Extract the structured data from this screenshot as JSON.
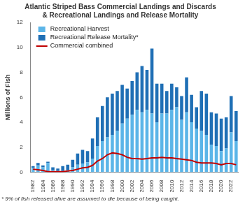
{
  "chart_data": {
    "type": "bar",
    "title": [
      "Atlantic Striped Bass Commercial Landings and Discards",
      "& Recreational Landings and Release Mortality"
    ],
    "y_label": "Millions of Fish",
    "footnote": "* 9% of fish released alive are assumed to die because of being caught.",
    "categories": [
      "1982",
      null,
      "1984",
      null,
      "1986",
      null,
      "1988",
      null,
      "1990",
      null,
      "1992",
      null,
      "1994",
      null,
      "1996",
      null,
      "1998",
      null,
      "2000",
      null,
      "2002",
      null,
      "2004",
      null,
      "2006",
      null,
      "2008",
      null,
      "2010",
      null,
      "2012",
      null,
      "2014",
      null,
      "2016",
      null,
      "2018",
      null,
      "2020",
      null,
      "2022",
      null
    ],
    "stacked": true,
    "series": [
      {
        "name": "Recreational Harvest",
        "type": "bar",
        "color": "#5bb5e8",
        "values": [
          0.35,
          0.55,
          0.4,
          0.75,
          0.2,
          0.1,
          0.1,
          0.2,
          0.4,
          0.6,
          0.7,
          0.8,
          1.1,
          2.1,
          2.5,
          2.8,
          3.0,
          3.3,
          3.9,
          4.3,
          4.6,
          5.0,
          4.8,
          5.0,
          4.7,
          4.0,
          4.7,
          4.7,
          5.0,
          5.2,
          4.2,
          4.8,
          4.0,
          3.5,
          3.3,
          3.0,
          2.2,
          2.1,
          1.7,
          1.9,
          3.2,
          2.5
        ]
      },
      {
        "name": "Recreational Release Mortality*",
        "type": "bar",
        "color": "#1f6fb5",
        "values": [
          0.15,
          0.2,
          0.15,
          0.1,
          0.2,
          0.2,
          0.4,
          0.4,
          0.6,
          0.9,
          1.1,
          0.9,
          1.6,
          2.3,
          2.8,
          3.2,
          3.3,
          3.2,
          3.1,
          2.4,
          2.7,
          3.0,
          3.7,
          3.2,
          5.2,
          3.1,
          2.4,
          1.8,
          2.1,
          1.6,
          1.9,
          2.8,
          2.2,
          1.7,
          3.2,
          3.3,
          2.6,
          2.6,
          2.6,
          2.5,
          2.9,
          2.4
        ]
      },
      {
        "name": "Commercial combined",
        "type": "line",
        "color": "#c00000",
        "marker": "none",
        "line_style": "solid",
        "values": [
          0.25,
          0.2,
          0.15,
          0.05,
          0.05,
          0.05,
          0.05,
          0.1,
          0.15,
          0.25,
          0.35,
          0.4,
          0.55,
          0.9,
          1.1,
          1.4,
          1.55,
          1.5,
          1.4,
          1.2,
          1.1,
          1.1,
          1.05,
          1.1,
          1.15,
          1.15,
          1.2,
          1.15,
          1.15,
          1.1,
          1.05,
          1.0,
          0.95,
          0.8,
          0.75,
          0.75,
          0.75,
          0.7,
          0.6,
          0.7,
          0.7,
          0.6
        ]
      }
    ],
    "ylim": [
      0,
      12
    ],
    "yticks": [
      0,
      2,
      4,
      6,
      8,
      10,
      12
    ],
    "grid": false,
    "legend": "upper left"
  }
}
